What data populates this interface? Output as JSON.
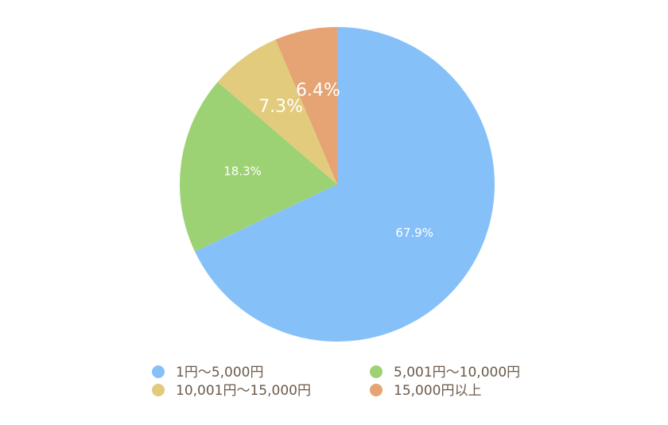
{
  "chart_data": {
    "type": "pie",
    "categories": [
      "1円〜5,000円",
      "5,001円〜10,000円",
      "10,001円〜15,000円",
      "15,000円以上"
    ],
    "values": [
      67.9,
      18.3,
      7.3,
      6.4
    ],
    "value_labels": [
      "67.9%",
      "18.3%",
      "7.3%",
      "6.4%"
    ],
    "colors": [
      "#86c0f8",
      "#9dd274",
      "#e2cb7c",
      "#e6a373"
    ],
    "legend": "bottom"
  }
}
